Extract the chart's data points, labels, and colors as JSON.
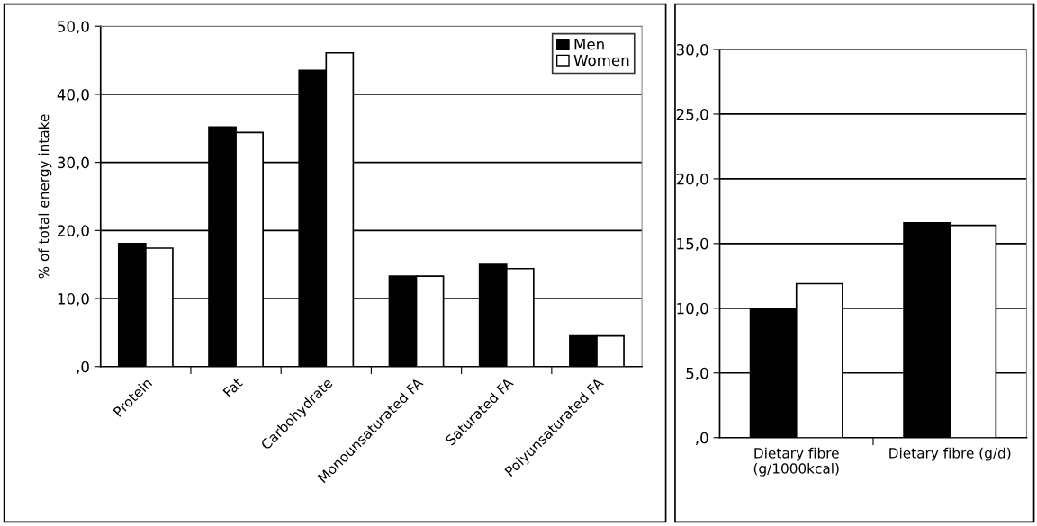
{
  "chart_data": [
    {
      "type": "bar",
      "ylabel": "% of total energy intake",
      "categories": [
        "Protein",
        "Fat",
        "Carbohydrate",
        "Monounsaturated FA",
        "Saturated FA",
        "Polyunsaturated FA"
      ],
      "series": [
        {
          "name": "Men",
          "color": "#000000",
          "values": [
            18.1,
            35.2,
            43.5,
            13.3,
            15.0,
            4.5
          ]
        },
        {
          "name": "Women",
          "color": "#ffffff",
          "values": [
            17.4,
            34.4,
            46.1,
            13.3,
            14.4,
            4.5
          ]
        }
      ],
      "ylim": [
        0,
        50
      ],
      "yticks": [
        {
          "value": 0,
          "label": ",0"
        },
        {
          "value": 10,
          "label": "10,0"
        },
        {
          "value": 20,
          "label": "20,0"
        },
        {
          "value": 30,
          "label": "30,0"
        },
        {
          "value": 40,
          "label": "40,0"
        },
        {
          "value": 50,
          "label": "50,0"
        }
      ],
      "grid": "y",
      "legend": "top right"
    },
    {
      "type": "bar",
      "categories": [
        "Dietary fibre\n(g/1000kcal)",
        "Dietary fibre (g/d)"
      ],
      "series": [
        {
          "color": "#000000",
          "values": [
            10.0,
            16.6
          ]
        },
        {
          "color": "#ffffff",
          "values": [
            11.9,
            16.4
          ]
        }
      ],
      "ylim": [
        0,
        30
      ],
      "yticks": [
        {
          "value": 0,
          "label": ",0"
        },
        {
          "value": 5,
          "label": "5,0"
        },
        {
          "value": 10,
          "label": "10,0"
        },
        {
          "value": 15,
          "label": "15,0"
        },
        {
          "value": 20,
          "label": "20,0"
        },
        {
          "value": 25,
          "label": "25,0"
        },
        {
          "value": 30,
          "label": "30,0"
        }
      ],
      "grid": "y"
    }
  ]
}
